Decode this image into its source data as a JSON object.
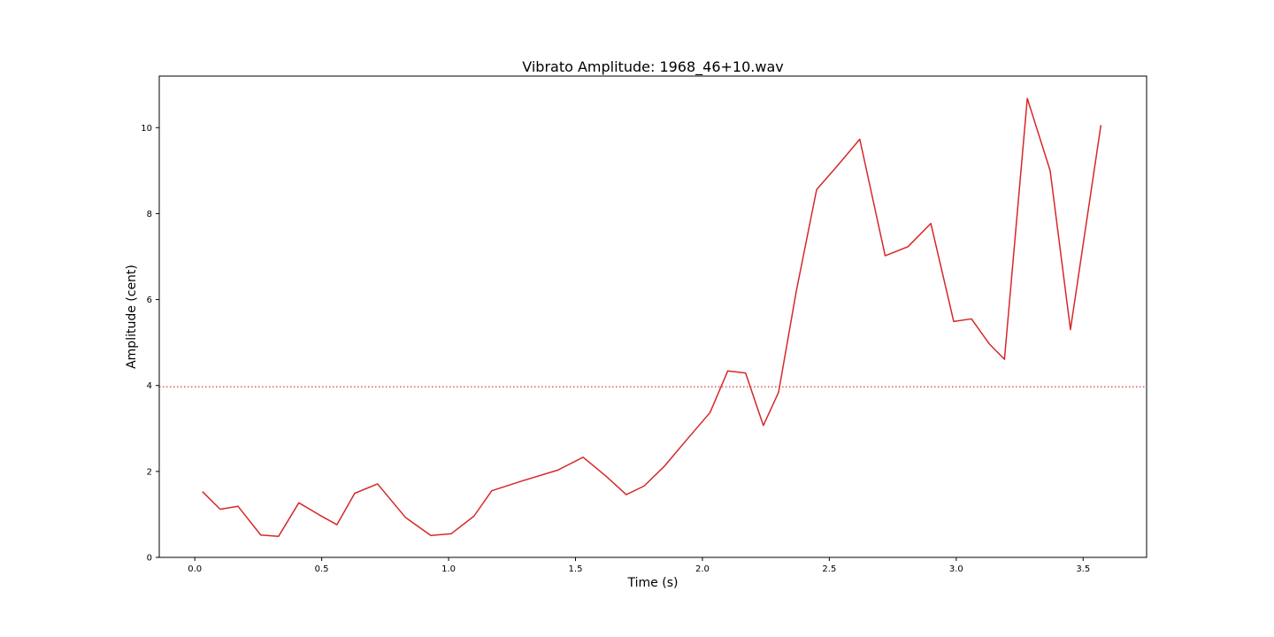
{
  "chart_data": {
    "type": "line",
    "title": "Vibrato Amplitude: 1968_46+10.wav",
    "xlabel": "Time (s)",
    "ylabel": "Amplitude (cent)",
    "xlim": [
      -0.14,
      3.75
    ],
    "ylim": [
      0,
      11.2
    ],
    "xticks": [
      0.0,
      0.5,
      1.0,
      1.5,
      2.0,
      2.5,
      3.0,
      3.5
    ],
    "xtick_labels": [
      "0.0",
      "0.5",
      "1.0",
      "1.5",
      "2.0",
      "2.5",
      "3.0",
      "3.5"
    ],
    "yticks": [
      0,
      2,
      4,
      6,
      8,
      10
    ],
    "ytick_labels": [
      "0",
      "2",
      "4",
      "6",
      "8",
      "10"
    ],
    "grid": false,
    "line_color": "#d62728",
    "threshold": {
      "y": 3.97,
      "color": "#d62728",
      "style": "dotted"
    },
    "series": [
      {
        "x": [
          0.03,
          0.1,
          0.17,
          0.26,
          0.33,
          0.41,
          0.49,
          0.56,
          0.63,
          0.72,
          0.83,
          0.93,
          1.01,
          1.1,
          1.17,
          1.29,
          1.43,
          1.53,
          1.62,
          1.7,
          1.77,
          1.85,
          1.94,
          2.03,
          2.1,
          2.17,
          2.24,
          2.3,
          2.37,
          2.45,
          2.53,
          2.62,
          2.72,
          2.81,
          2.9,
          2.99,
          3.06,
          3.13,
          3.19,
          3.28,
          3.37,
          3.45,
          3.57
        ],
        "y": [
          1.53,
          1.12,
          1.19,
          0.52,
          0.49,
          1.27,
          0.99,
          0.76,
          1.49,
          1.71,
          0.93,
          0.51,
          0.55,
          0.96,
          1.55,
          1.78,
          2.03,
          2.33,
          1.89,
          1.46,
          1.66,
          2.12,
          2.75,
          3.37,
          4.34,
          4.29,
          3.07,
          3.84,
          6.2,
          8.56,
          9.1,
          9.73,
          7.02,
          7.23,
          7.77,
          5.49,
          5.55,
          4.97,
          4.61,
          10.68,
          9.0,
          5.3,
          10.06
        ]
      }
    ]
  }
}
